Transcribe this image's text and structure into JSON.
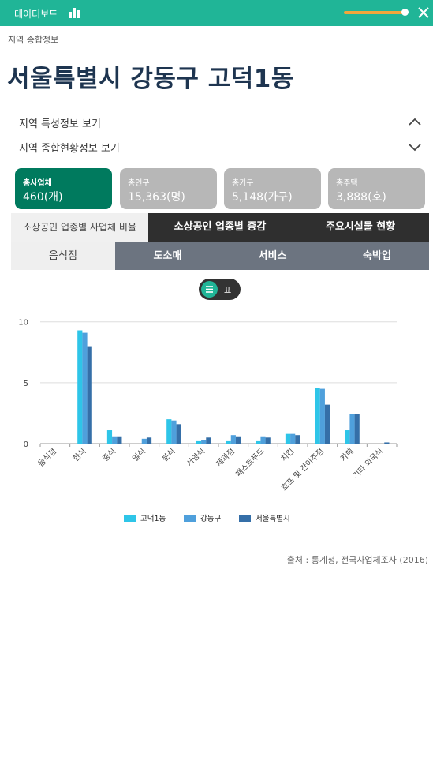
{
  "topbar": {
    "title": "데이터보드"
  },
  "breadcrumb": "지역 종합정보",
  "page_title": "서울특별시 강동구 고덕1동",
  "accordion": [
    {
      "label": "지역 특성정보 보기",
      "state": "expanded"
    },
    {
      "label": "지역 종합현황정보 보기",
      "state": "collapsed"
    }
  ],
  "stats": [
    {
      "label": "총사업체",
      "value": "460(개)"
    },
    {
      "label": "총인구",
      "value": "15,363(명)"
    },
    {
      "label": "총가구",
      "value": "5,148(가구)"
    },
    {
      "label": "총주택",
      "value": "3,888(호)"
    }
  ],
  "tabs_primary": [
    {
      "label": "소상공인 업종별 사업체 비율"
    },
    {
      "label": "소상공인 업종별 증감"
    },
    {
      "label": "주요시설물 현황"
    }
  ],
  "tabs_secondary": [
    {
      "label": "음식점"
    },
    {
      "label": "도소매"
    },
    {
      "label": "서비스"
    },
    {
      "label": "숙박업"
    }
  ],
  "view_toggle": {
    "label": "표"
  },
  "colors": {
    "brand": "#20b597",
    "active_stat": "#007a5e",
    "dark_tab": "#2f2f2f",
    "slate_tab": "#6c7480",
    "series": [
      "#2ec5e8",
      "#4fa0dc",
      "#356fa8"
    ]
  },
  "chart_data": {
    "type": "bar",
    "categories": [
      "음식점",
      "한식",
      "중식",
      "일식",
      "분식",
      "서양식",
      "제과점",
      "패스트푸드",
      "치킨",
      "호프 및 간이주점",
      "카페",
      "기타 외국식"
    ],
    "series": [
      {
        "name": "고덕1동",
        "values": [
          0,
          9.3,
          1.1,
          0,
          2.0,
          0.2,
          0.2,
          0.2,
          0.8,
          4.6,
          1.1,
          0
        ]
      },
      {
        "name": "강동구",
        "values": [
          0,
          9.1,
          0.6,
          0.4,
          1.9,
          0.3,
          0.7,
          0.6,
          0.8,
          4.5,
          2.4,
          0
        ]
      },
      {
        "name": "서울특별시",
        "values": [
          0,
          8.0,
          0.6,
          0.5,
          1.6,
          0.5,
          0.6,
          0.5,
          0.7,
          3.2,
          2.4,
          0.1
        ]
      }
    ],
    "yticks": [
      0,
      5,
      10
    ],
    "ylim": [
      0,
      10.5
    ],
    "grid": true,
    "legend": "bottom-center"
  },
  "source": "출처 : 통계청, 전국사업체조사 (2016)"
}
